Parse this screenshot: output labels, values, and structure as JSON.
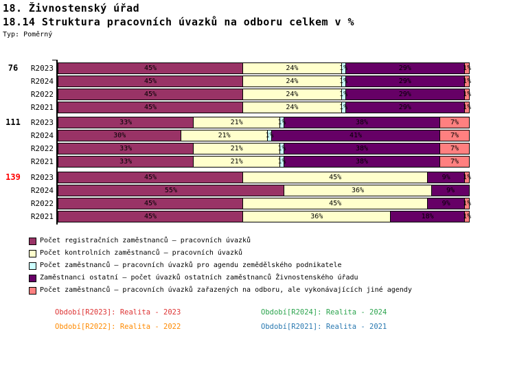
{
  "header": {
    "title_line1": "18. Živnostenský úřad",
    "title_line2": "18.14 Struktura pracovních úvazků na odboru celkem v %",
    "type_label": "Typ: Poměrný"
  },
  "chart_data": {
    "type": "bar",
    "orientation": "horizontal-stacked",
    "unit": "%",
    "xlim": [
      0,
      100
    ],
    "grid": false,
    "legend_position": "bottom",
    "series": [
      {
        "name": "Počet registračních zaměstnanců – pracovních úvazků",
        "color": "#993366"
      },
      {
        "name": "Počet kontrolních zaměstnanců – pracovních úvazků",
        "color": "#FFFFCC"
      },
      {
        "name": "Počet zaměstnanců – pracovních úvazků pro agendu zemědělského podnikatele",
        "color": "#CCFFFF"
      },
      {
        "name": "Zaměstnanci ostatní – počet úvazků ostatních zaměstnanců Živnostenského úřadu",
        "color": "#660066"
      },
      {
        "name": "Počet zaměstnanců – pracovních úvazků zařazených na odboru, ale vykonávajících jiné agendy",
        "color": "#FF8080"
      }
    ],
    "groups": [
      {
        "label": "76",
        "label_color": "#000000",
        "rows": [
          {
            "label": "R2023",
            "values": [
              45,
              24,
              1,
              29,
              1
            ]
          },
          {
            "label": "R2024",
            "values": [
              45,
              24,
              1,
              29,
              1
            ]
          },
          {
            "label": "R2022",
            "values": [
              45,
              24,
              1,
              29,
              1
            ]
          },
          {
            "label": "R2021",
            "values": [
              45,
              24,
              1,
              29,
              1
            ]
          }
        ]
      },
      {
        "label": "111",
        "label_color": "#000000",
        "rows": [
          {
            "label": "R2023",
            "values": [
              33,
              21,
              1,
              38,
              7
            ]
          },
          {
            "label": "R2024",
            "values": [
              30,
              21,
              1,
              41,
              7
            ]
          },
          {
            "label": "R2022",
            "values": [
              33,
              21,
              1,
              38,
              7
            ]
          },
          {
            "label": "R2021",
            "values": [
              33,
              21,
              1,
              38,
              7
            ]
          }
        ]
      },
      {
        "label": "139",
        "label_color": "#FF0000",
        "rows": [
          {
            "label": "R2023",
            "values": [
              45,
              45,
              0,
              9,
              1
            ]
          },
          {
            "label": "R2024",
            "values": [
              55,
              36,
              0,
              9,
              0
            ]
          },
          {
            "label": "R2022",
            "values": [
              45,
              45,
              0,
              9,
              1
            ]
          },
          {
            "label": "R2021",
            "values": [
              45,
              36,
              0,
              18,
              1
            ]
          }
        ]
      }
    ]
  },
  "footer": {
    "periods": [
      {
        "text": "Období[R2023]: Realita - 2023",
        "color": "#DD3333",
        "col": 0,
        "row": 0
      },
      {
        "text": "Období[R2024]: Realita - 2024",
        "color": "#2CA44E",
        "col": 1,
        "row": 0
      },
      {
        "text": "Období[R2022]: Realita - 2022",
        "color": "#FF8A00",
        "col": 0,
        "row": 1
      },
      {
        "text": "Období[R2021]: Realita - 2021",
        "color": "#2878B0",
        "col": 1,
        "row": 1
      }
    ]
  }
}
